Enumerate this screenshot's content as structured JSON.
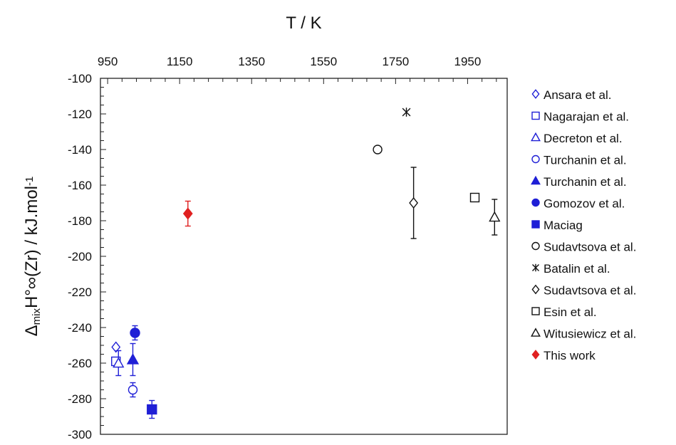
{
  "chart_data": {
    "type": "scatter",
    "xlabel": "T / K",
    "ylabel": {
      "parts": [
        {
          "text": "Δ",
          "sub": false,
          "sup": false
        },
        {
          "text": "mix",
          "sub": true,
          "sup": false
        },
        {
          "text": "H°∞(Zr) / kJ.mol",
          "sub": false,
          "sup": false
        },
        {
          "text": "-1",
          "sub": false,
          "sup": true
        }
      ]
    },
    "xlim": [
      930,
      2060
    ],
    "ylim": [
      -300,
      -100
    ],
    "xticks": [
      "950",
      "1150",
      "1350",
      "1550",
      "1750",
      "1950"
    ],
    "xtick_values": [
      950,
      1150,
      1350,
      1550,
      1750,
      1950
    ],
    "yticks": [
      "-100",
      "-120",
      "-140",
      "-160",
      "-180",
      "-200",
      "-220",
      "-240",
      "-260",
      "-280",
      "-300"
    ],
    "ytick_values": [
      -100,
      -120,
      -140,
      -160,
      -180,
      -200,
      -220,
      -240,
      -260,
      -280,
      -300
    ],
    "x_axis_position": "top",
    "grid": false,
    "legend_position": "right",
    "series": [
      {
        "name": "Ansara et al.",
        "marker": "diamond-open",
        "color": "#1f1fd6",
        "x": [
          973
        ],
        "y": [
          -251
        ],
        "err": null
      },
      {
        "name": "Nagarajan et al.",
        "marker": "square-open",
        "color": "#1f1fd6",
        "x": [
          973
        ],
        "y": [
          -259
        ],
        "err": null
      },
      {
        "name": "Decreton et al.",
        "marker": "triangle-open",
        "color": "#1f1fd6",
        "x": [
          980
        ],
        "y": [
          -260
        ],
        "err": 7
      },
      {
        "name": "Turchanin et al.",
        "marker": "circle-open",
        "color": "#1f1fd6",
        "x": [
          1020
        ],
        "y": [
          -275
        ],
        "err": 4
      },
      {
        "name": "Turchanin et al.",
        "marker": "triangle-filled",
        "color": "#1f1fd6",
        "x": [
          1020
        ],
        "y": [
          -258
        ],
        "err": 9
      },
      {
        "name": "Gomozov et al.",
        "marker": "circle-filled",
        "color": "#1f1fd6",
        "x": [
          1026
        ],
        "y": [
          -243
        ],
        "err": 4
      },
      {
        "name": "Maciag",
        "marker": "square-filled",
        "color": "#1f1fd6",
        "x": [
          1073
        ],
        "y": [
          -286
        ],
        "err": 5
      },
      {
        "name": "Sudavtsova et al.",
        "marker": "circle-open",
        "color": "#111111",
        "x": [
          1700
        ],
        "y": [
          -140
        ],
        "err": null
      },
      {
        "name": "Batalin et al.",
        "marker": "asterisk",
        "color": "#111111",
        "x": [
          1780
        ],
        "y": [
          -119
        ],
        "err": null
      },
      {
        "name": "Sudavtsova et al.",
        "marker": "diamond-open",
        "color": "#111111",
        "x": [
          1800
        ],
        "y": [
          -170
        ],
        "err": 20
      },
      {
        "name": "Esin et al.",
        "marker": "square-open",
        "color": "#111111",
        "x": [
          1970
        ],
        "y": [
          -167
        ],
        "err": null
      },
      {
        "name": "Witusiewicz et al.",
        "marker": "triangle-open",
        "color": "#111111",
        "x": [
          2025
        ],
        "y": [
          -178
        ],
        "err": 10
      },
      {
        "name": "This work",
        "marker": "diamond-filled",
        "color": "#e02020",
        "x": [
          1173
        ],
        "y": [
          -176
        ],
        "err": 7
      }
    ]
  }
}
